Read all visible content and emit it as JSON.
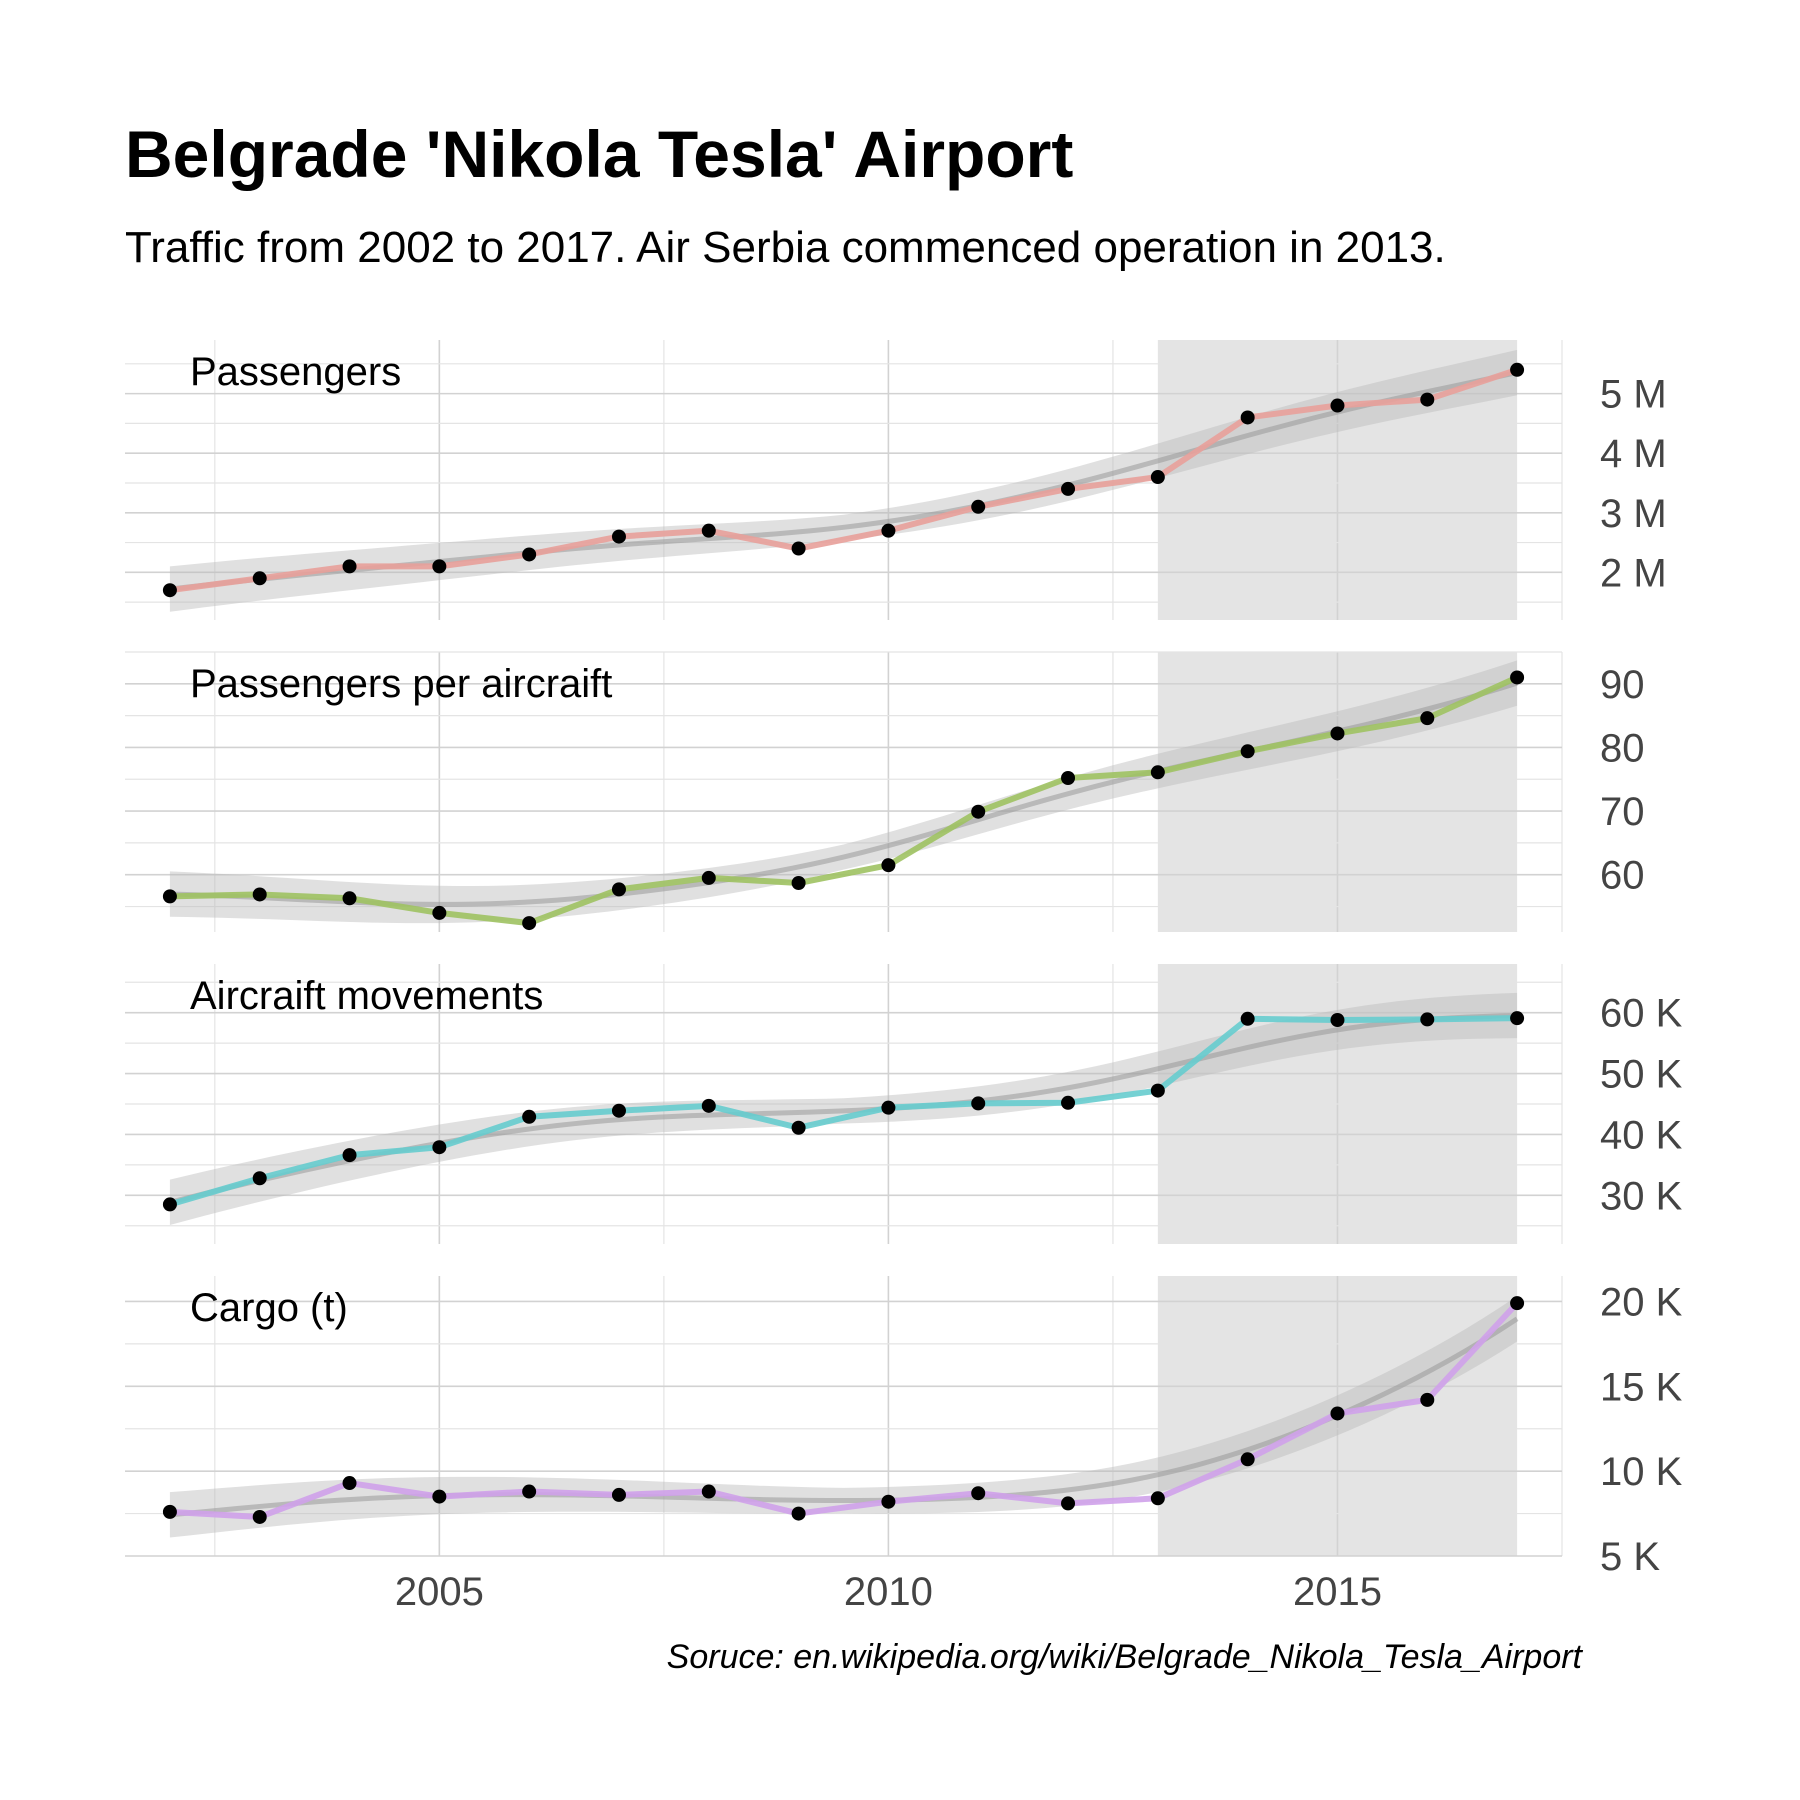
{
  "header": {
    "title": "Belgrade 'Nikola Tesla' Airport",
    "subtitle": "Traffic from 2002 to 2017. Air Serbia commenced operation in 2013."
  },
  "caption": "Soruce: en.wikipedia.org/wiki/Belgrade_Nikola_Tesla_Airport",
  "colors": {
    "highlight": "#e4e4e4",
    "smooth_band": "#bbbbbb",
    "smooth_line": "#999999",
    "point": "#000000"
  },
  "chart_data": {
    "type": "line",
    "facets": "vertical, free y-scales, shared x-axis",
    "x": [
      2002,
      2003,
      2004,
      2005,
      2006,
      2007,
      2008,
      2009,
      2010,
      2011,
      2012,
      2013,
      2014,
      2015,
      2016,
      2017
    ],
    "xlim": [
      2001.5,
      2017.5
    ],
    "x_ticks": [
      2005,
      2010,
      2015
    ],
    "x_tick_labels": [
      "2005",
      "2010",
      "2015"
    ],
    "highlight_range": [
      2013,
      2017
    ],
    "smoother": "loess trend with confidence band",
    "series": [
      {
        "name": "Passengers",
        "color": "#e8a09a",
        "values": [
          1.7,
          1.9,
          2.1,
          2.1,
          2.3,
          2.6,
          2.7,
          2.4,
          2.7,
          3.1,
          3.4,
          3.6,
          4.6,
          4.8,
          4.9,
          5.4
        ],
        "unit": "millions",
        "ylim": [
          1.2,
          5.9
        ],
        "y_ticks": [
          2,
          3,
          4,
          5
        ],
        "y_tick_labels": [
          "2 M",
          "3 M",
          "4 M",
          "5 M"
        ]
      },
      {
        "name": "Passengers per aircraift",
        "color": "#9fc262",
        "values": [
          56.6,
          56.9,
          56.3,
          54.0,
          52.4,
          57.7,
          59.5,
          58.7,
          61.5,
          69.9,
          75.2,
          76.1,
          79.4,
          82.2,
          84.6,
          91.0
        ],
        "ylim": [
          51,
          95
        ],
        "y_ticks": [
          60,
          70,
          80,
          90
        ],
        "y_tick_labels": [
          "60",
          "70",
          "80",
          "90"
        ]
      },
      {
        "name": "Aircraift movements",
        "color": "#66ccce",
        "values": [
          28.5,
          32.8,
          36.6,
          37.9,
          42.9,
          43.9,
          44.7,
          41.1,
          44.4,
          45.1,
          45.2,
          47.2,
          59.0,
          58.8,
          58.9,
          59.1
        ],
        "unit": "thousands",
        "ylim": [
          22,
          68
        ],
        "y_ticks": [
          30,
          40,
          50,
          60
        ],
        "y_tick_labels": [
          "30 K",
          "40 K",
          "50 K",
          "60 K"
        ]
      },
      {
        "name": "Cargo (t)",
        "color": "#cfa1ea",
        "values": [
          7.6,
          7.3,
          9.3,
          8.5,
          8.8,
          8.6,
          8.8,
          7.5,
          8.2,
          8.7,
          8.1,
          8.4,
          10.7,
          13.4,
          14.2,
          19.9
        ],
        "unit": "thousands of tonnes",
        "ylim": [
          5.0,
          21.5
        ],
        "y_ticks": [
          5,
          10,
          15,
          20
        ],
        "y_tick_labels": [
          "5 K",
          "10 K",
          "15 K",
          "20 K"
        ]
      }
    ]
  }
}
